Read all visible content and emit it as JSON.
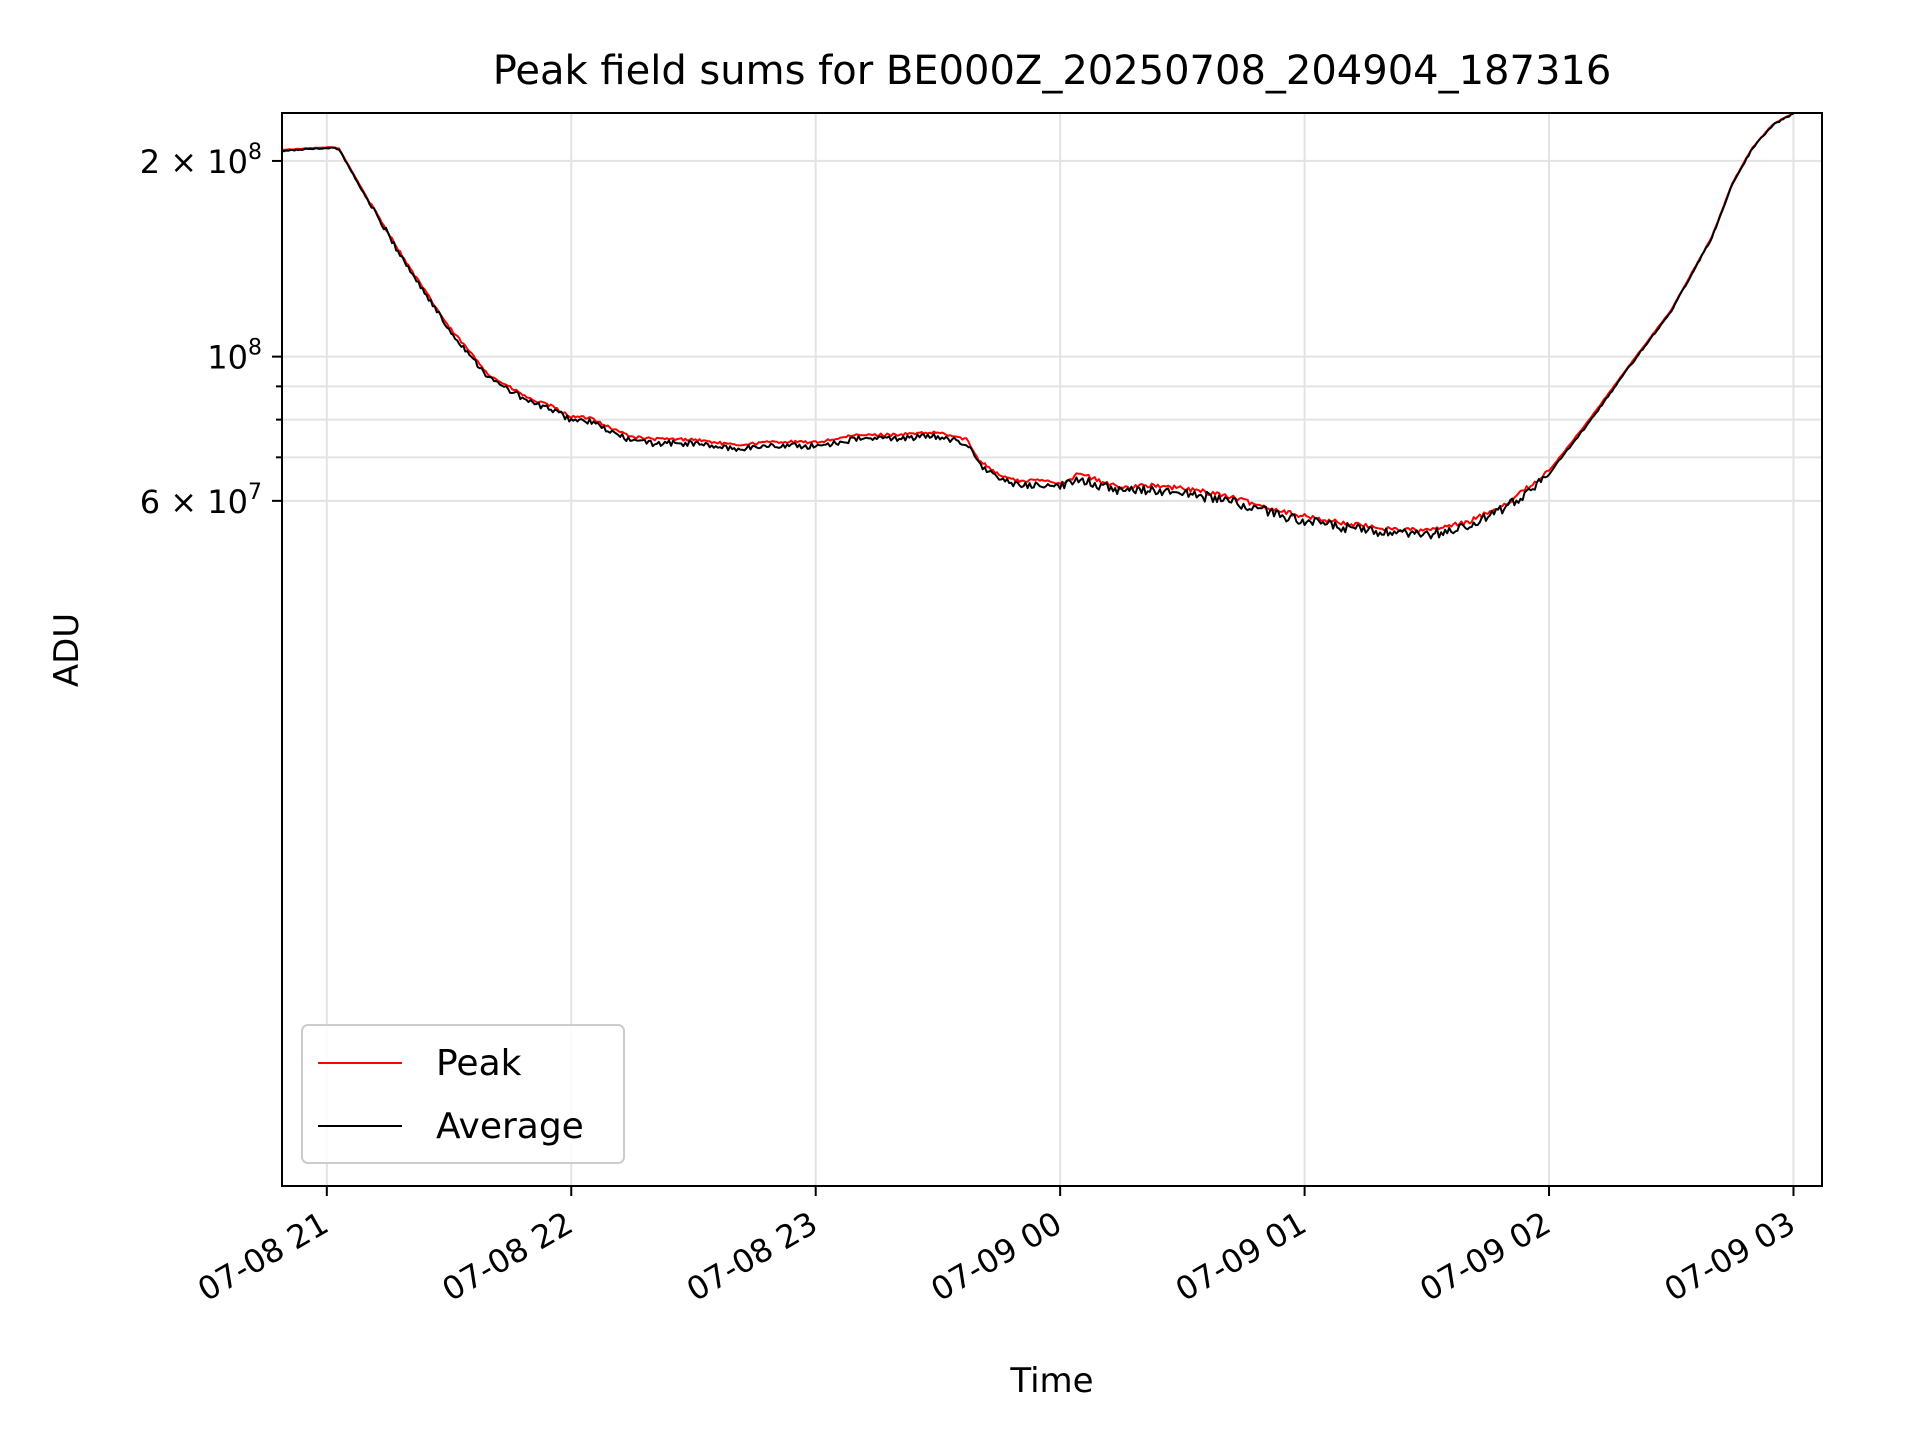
{
  "chart_data": {
    "type": "line",
    "title": "Peak field sums for BE000Z_20250708_204904_187316",
    "xlabel": "Time",
    "ylabel": "ADU",
    "y_scale": "log",
    "xlim": [
      "2025-07-08 20:49",
      "2025-07-09 03:07"
    ],
    "ylim": [
      5300000,
      237000000
    ],
    "x_ticks": [
      "07-08 21",
      "07-08 22",
      "07-08 23",
      "07-09 00",
      "07-09 01",
      "07-09 02",
      "07-09 03"
    ],
    "y_ticks": [
      {
        "value": 60000000,
        "label": "6 × 10",
        "exp": "7"
      },
      {
        "value": 100000000,
        "label": "10",
        "exp": "8"
      },
      {
        "value": 200000000,
        "label": "2 × 10",
        "exp": "8"
      }
    ],
    "y_minor_grid": [
      70000000,
      80000000,
      90000000
    ],
    "grid": true,
    "legend": {
      "placement": "lower-left",
      "entries": [
        "Peak",
        "Average"
      ]
    },
    "series": [
      {
        "name": "Peak",
        "color": "#ff0000",
        "x": [
          "20:49",
          "20:55",
          "21:01",
          "21:03",
          "21:10",
          "21:20",
          "21:30",
          "21:40",
          "21:50",
          "21:55",
          "22:00",
          "22:05",
          "22:10",
          "22:15",
          "22:20",
          "22:30",
          "22:40",
          "22:50",
          "23:00",
          "23:10",
          "23:20",
          "23:30",
          "23:37",
          "23:40",
          "23:45",
          "23:50",
          "23:55",
          "00:00",
          "00:05",
          "00:10",
          "00:15",
          "00:20",
          "00:30",
          "00:40",
          "00:50",
          "01:00",
          "01:10",
          "01:20",
          "01:30",
          "01:40",
          "01:50",
          "02:00",
          "02:10",
          "02:20",
          "02:30",
          "02:40",
          "02:45",
          "02:50",
          "02:55",
          "03:00"
        ],
        "y": [
          208000000,
          209000000,
          210000000,
          209000000,
          175000000,
          138000000,
          111000000,
          93500000,
          86000000,
          84000000,
          80800000,
          80500000,
          77500000,
          75300000,
          74700000,
          74600000,
          73100000,
          74000000,
          73800000,
          75700000,
          75900000,
          76400000,
          74600000,
          69500000,
          65800000,
          64300000,
          64600000,
          63900000,
          66100000,
          64200000,
          62800000,
          63500000,
          62700000,
          61300000,
          58800000,
          56800000,
          55400000,
          54400000,
          54000000,
          55600000,
          59700000,
          66700000,
          80200000,
          97500000,
          118000000,
          153000000,
          185000000,
          210000000,
          228000000,
          237000000
        ]
      },
      {
        "name": "Average",
        "color": "#000000",
        "x": [
          "20:49",
          "20:55",
          "21:01",
          "21:03",
          "21:10",
          "21:20",
          "21:30",
          "21:40",
          "21:50",
          "21:55",
          "22:00",
          "22:05",
          "22:10",
          "22:15",
          "22:20",
          "22:30",
          "22:40",
          "22:50",
          "23:00",
          "23:10",
          "23:20",
          "23:30",
          "23:37",
          "23:40",
          "23:45",
          "23:50",
          "23:55",
          "00:00",
          "00:05",
          "00:10",
          "00:15",
          "00:20",
          "00:30",
          "00:40",
          "00:50",
          "01:00",
          "01:10",
          "01:20",
          "01:30",
          "01:40",
          "01:50",
          "02:00",
          "02:10",
          "02:20",
          "02:30",
          "02:40",
          "02:45",
          "02:50",
          "02:55",
          "03:00"
        ],
        "y": [
          207000000,
          208500000,
          209500000,
          208500000,
          174000000,
          137000000,
          110000000,
          92500000,
          85000000,
          83000000,
          80000000,
          79300000,
          76400000,
          74200000,
          73600000,
          73500000,
          72100000,
          73000000,
          72800000,
          74700000,
          74900000,
          75400000,
          73600000,
          68500000,
          64800000,
          63300000,
          63600000,
          62900000,
          65100000,
          63200000,
          61800000,
          62500000,
          61700000,
          60300000,
          57900000,
          55900000,
          54500000,
          53500000,
          53100000,
          54700000,
          58800000,
          66000000,
          79500000,
          97000000,
          117500000,
          152500000,
          184500000,
          209500000,
          227500000,
          236500000
        ]
      }
    ]
  }
}
